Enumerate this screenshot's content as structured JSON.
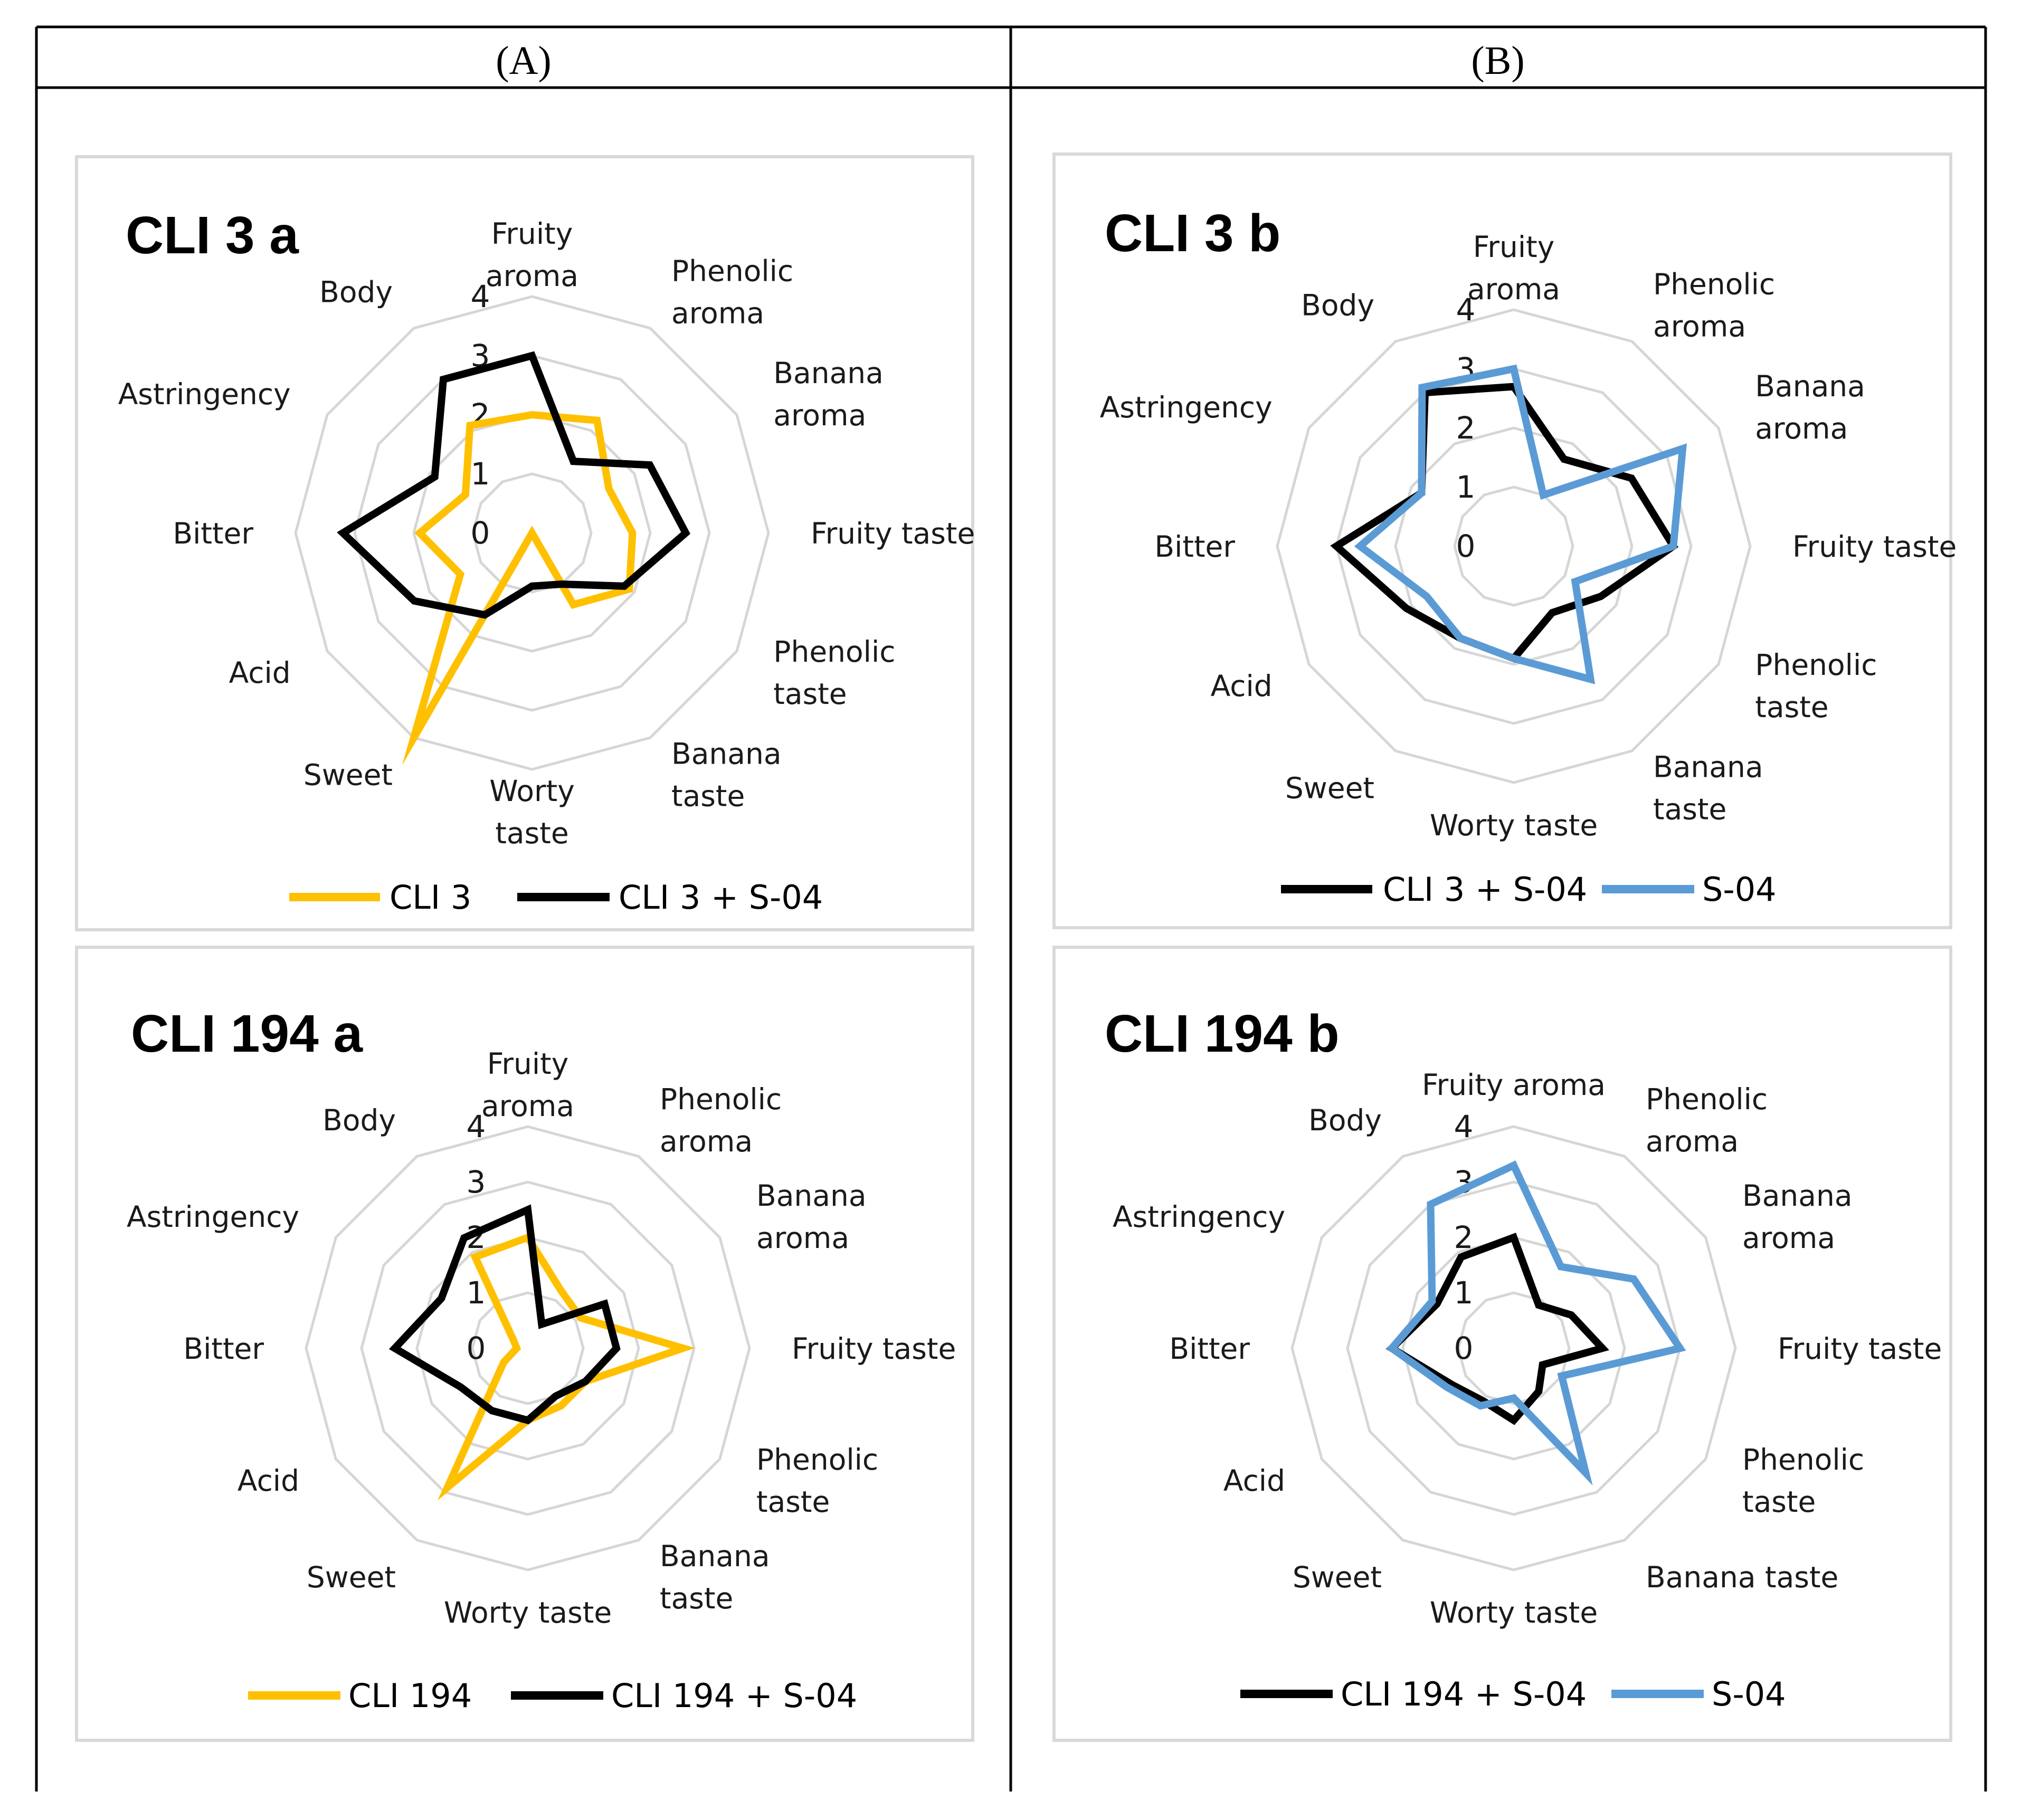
{
  "columns": [
    {
      "label": "(A)"
    },
    {
      "label": "(B)"
    }
  ],
  "colors": {
    "orange": "#FFC000",
    "black": "#000000",
    "blue": "#5B9BD5"
  },
  "chart_data": [
    {
      "type": "radar",
      "title": "CLI 3 a",
      "categories": [
        [
          "Fruity",
          "aroma"
        ],
        [
          "Phenolic",
          "aroma"
        ],
        [
          "Banana",
          "aroma"
        ],
        [
          "Fruity taste"
        ],
        [
          "Phenolic",
          "taste"
        ],
        [
          "Banana",
          "taste"
        ],
        [
          "Worty",
          "taste"
        ],
        [
          "Sweet"
        ],
        [
          "Acid"
        ],
        [
          "Bitter"
        ],
        [
          "Astringency"
        ],
        [
          "Body"
        ]
      ],
      "ticks": [
        "0",
        "1",
        "2",
        "3",
        "4"
      ],
      "rlim": [
        0,
        4
      ],
      "grid": true,
      "legend_position": "bottom",
      "series": [
        {
          "name": "CLI 3",
          "color": "#FFC000",
          "values": [
            2.0,
            2.2,
            1.5,
            1.7,
            1.9,
            1.4,
            0.0,
            4.0,
            1.4,
            1.9,
            1.3,
            2.1
          ]
        },
        {
          "name": "CLI 3 + S-04",
          "color": "#000000",
          "values": [
            3.0,
            1.4,
            2.3,
            2.6,
            1.8,
            1.0,
            0.9,
            1.6,
            2.3,
            3.2,
            1.9,
            3.0
          ]
        }
      ]
    },
    {
      "type": "radar",
      "title": "CLI 3 b",
      "categories": [
        [
          "Fruity",
          "aroma"
        ],
        [
          "Phenolic",
          "aroma"
        ],
        [
          "Banana",
          "aroma"
        ],
        [
          "Fruity taste"
        ],
        [
          "Phenolic",
          "taste"
        ],
        [
          "Banana",
          "taste"
        ],
        [
          "Worty taste"
        ],
        [
          "Sweet"
        ],
        [
          "Acid"
        ],
        [
          "Bitter"
        ],
        [
          "Astringency"
        ],
        [
          "Body"
        ]
      ],
      "ticks": [
        "0",
        "1",
        "2",
        "3",
        "4"
      ],
      "rlim": [
        0,
        4
      ],
      "grid": true,
      "legend_position": "bottom",
      "series": [
        {
          "name": "CLI 3 + S-04",
          "color": "#000000",
          "values": [
            2.7,
            1.7,
            2.3,
            2.7,
            1.7,
            1.3,
            1.9,
            1.8,
            2.1,
            3.0,
            1.8,
            3.0
          ]
        },
        {
          "name": "S-04",
          "color": "#5B9BD5",
          "values": [
            3.0,
            1.0,
            3.3,
            2.7,
            1.2,
            2.6,
            1.9,
            1.8,
            1.7,
            2.6,
            1.8,
            3.1
          ]
        }
      ]
    },
    {
      "type": "radar",
      "title": "CLI 194 a",
      "categories": [
        [
          "Fruity",
          "aroma"
        ],
        [
          "Phenolic",
          "aroma"
        ],
        [
          "Banana",
          "aroma"
        ],
        [
          "Fruity taste"
        ],
        [
          "Phenolic",
          "taste"
        ],
        [
          "Banana",
          "taste"
        ],
        [
          "Worty taste"
        ],
        [
          "Sweet"
        ],
        [
          "Acid"
        ],
        [
          "Bitter"
        ],
        [
          "Astringency"
        ],
        [
          "Body"
        ]
      ],
      "ticks": [
        "0",
        "1",
        "2",
        "3",
        "4"
      ],
      "rlim": [
        0,
        4
      ],
      "grid": true,
      "legend_position": "bottom",
      "series": [
        {
          "name": "CLI 194",
          "color": "#FFC000",
          "values": [
            2.0,
            1.2,
            1.1,
            2.8,
            1.2,
            1.2,
            1.3,
            2.9,
            0.5,
            0.2,
            0.3,
            1.9
          ]
        },
        {
          "name": "CLI 194 + S-04",
          "color": "#000000",
          "values": [
            2.5,
            0.5,
            1.6,
            1.6,
            1.2,
            1.0,
            1.3,
            1.3,
            1.4,
            2.4,
            1.8,
            2.3
          ]
        }
      ]
    },
    {
      "type": "radar",
      "title": "CLI 194 b",
      "categories": [
        [
          "Fruity aroma"
        ],
        [
          "Phenolic",
          "aroma"
        ],
        [
          "Banana",
          "aroma"
        ],
        [
          "Fruity taste"
        ],
        [
          "Phenolic",
          "taste"
        ],
        [
          "Banana taste"
        ],
        [
          "Worty taste"
        ],
        [
          "Sweet"
        ],
        [
          "Acid"
        ],
        [
          "Bitter"
        ],
        [
          "Astringency"
        ],
        [
          "Body"
        ]
      ],
      "ticks": [
        "0",
        "1",
        "2",
        "3",
        "4"
      ],
      "rlim": [
        0,
        4
      ],
      "grid": true,
      "legend_position": "bottom",
      "series": [
        {
          "name": "CLI 194 + S-04",
          "color": "#000000",
          "values": [
            2.0,
            0.9,
            1.2,
            1.6,
            0.6,
            0.9,
            1.3,
            1.1,
            1.3,
            2.2,
            1.6,
            1.9
          ]
        },
        {
          "name": "S-04",
          "color": "#5B9BD5",
          "values": [
            3.3,
            1.7,
            2.5,
            3.0,
            1.0,
            2.6,
            0.9,
            1.2,
            1.4,
            2.2,
            1.7,
            3.0
          ]
        }
      ]
    }
  ]
}
